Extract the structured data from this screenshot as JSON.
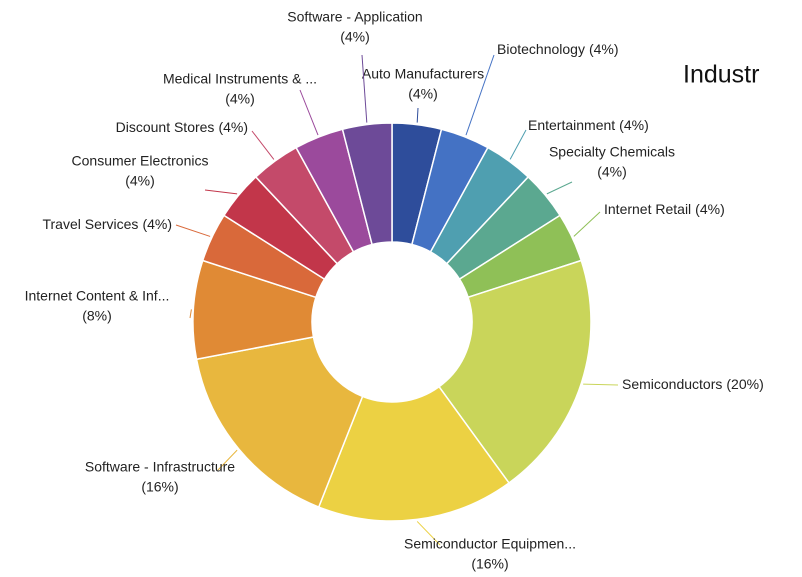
{
  "chart_data": {
    "type": "donut",
    "title": "Industr",
    "categories": [
      "Auto Manufacturers",
      "Biotechnology",
      "Entertainment",
      "Specialty Chemicals",
      "Internet Retail",
      "Semiconductors",
      "Semiconductor Equipmen...",
      "Software - Infrastructure",
      "Internet Content & Inf...",
      "Travel Services",
      "Consumer Electronics",
      "Discount Stores",
      "Medical Instruments & ...",
      "Software - Application"
    ],
    "values": [
      4,
      4,
      4,
      4,
      4,
      20,
      16,
      16,
      8,
      4,
      4,
      4,
      4,
      4
    ],
    "value_labels": [
      "(4%)",
      "(4%)",
      "(4%)",
      "(4%)",
      "(4%)",
      "(20%)",
      "(16%)",
      "(16%)",
      "(8%)",
      "(4%)",
      "(4%)",
      "(4%)",
      "(4%)",
      "(4%)"
    ],
    "colors": [
      "#2e4d9b",
      "#4472c4",
      "#4f9fb0",
      "#5ba890",
      "#8fc057",
      "#c9d55a",
      "#ecd143",
      "#e8b73e",
      "#e08a35",
      "#d9693a",
      "#c2364a",
      "#c44a6a",
      "#9b4a9c",
      "#6d4a98"
    ]
  }
}
